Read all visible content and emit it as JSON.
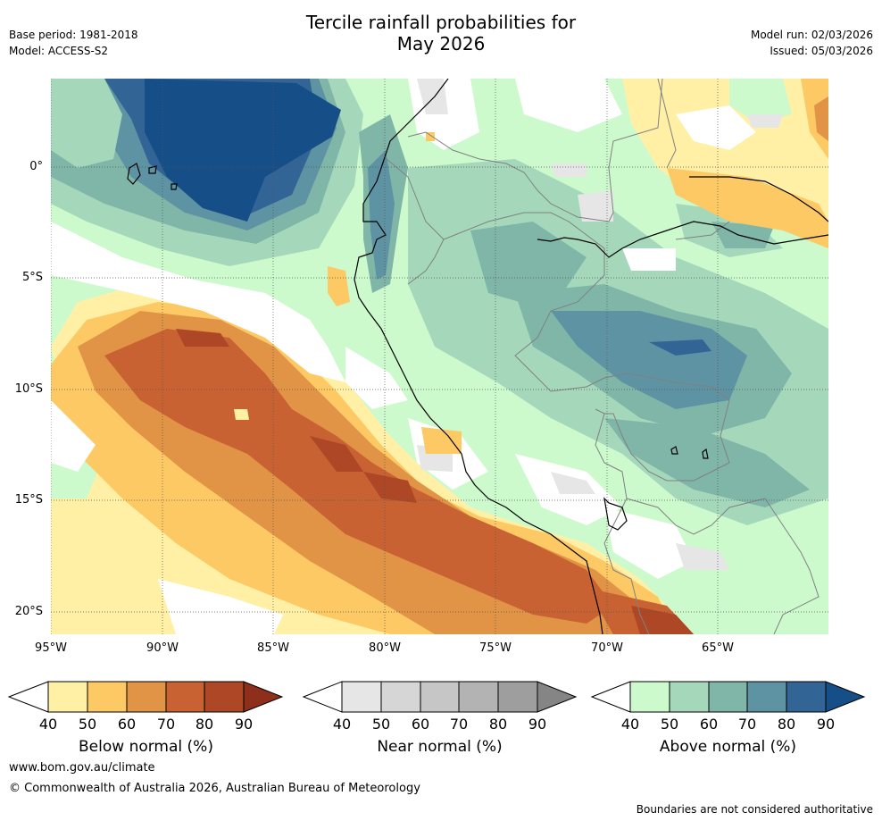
{
  "header": {
    "title_line1": "Tercile rainfall probabilities for",
    "title_line2": "May 2026",
    "base_period": "Base period: 1981-2018",
    "model": "Model: ACCESS-S2",
    "model_run": "Model run: 02/03/2026",
    "issued": "Issued: 05/03/2026"
  },
  "map": {
    "lat_labels": [
      "0°",
      "5°S",
      "10°S",
      "15°S",
      "20°S"
    ],
    "lon_labels": [
      "95°W",
      "90°W",
      "85°W",
      "80°W",
      "75°W",
      "70°W",
      "65°W"
    ],
    "colors": {
      "below": [
        "#fff0a6",
        "#fdc965",
        "#e19446",
        "#c96232",
        "#ad4726",
        "#8e2f1c"
      ],
      "near": [
        "#e6e6e6",
        "#d6d6d6",
        "#c6c6c6",
        "#b3b3b3",
        "#9e9e9e",
        "#858585"
      ],
      "above": [
        "#cdfacc",
        "#a5d8bb",
        "#80b6a8",
        "#5d93a2",
        "#326496",
        "#164e87"
      ]
    }
  },
  "colorbars": {
    "ticks": [
      "40",
      "50",
      "60",
      "70",
      "80",
      "90"
    ],
    "below_label": "Below normal (%)",
    "near_label": "Near normal (%)",
    "above_label": "Above normal (%)"
  },
  "footer": {
    "url": "www.bom.gov.au/climate",
    "copyright": "© Commonwealth of Australia 2026, Australian Bureau of Meteorology",
    "disclaimer": "Boundaries are not considered authoritative"
  }
}
